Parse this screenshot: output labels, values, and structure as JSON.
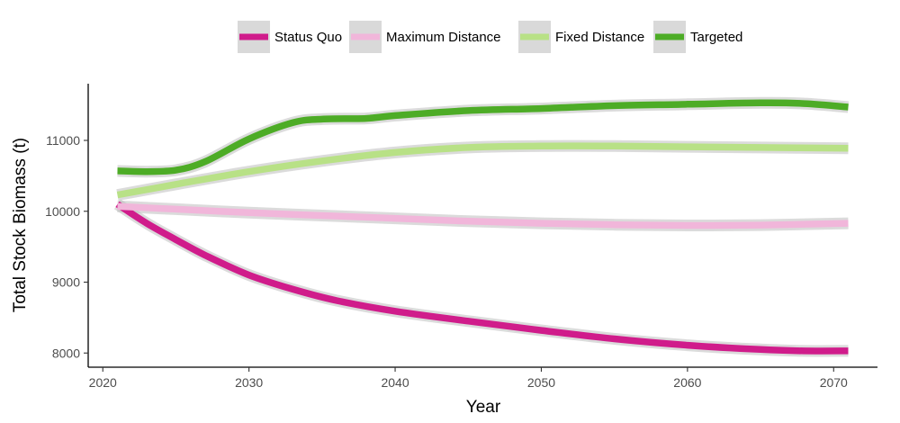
{
  "chart_data": {
    "type": "line",
    "xlabel": "Year",
    "ylabel": "Total Stock Biomass (t)",
    "xlim": [
      2019,
      2073
    ],
    "ylim": [
      7800,
      11800
    ],
    "x_ticks": [
      2020,
      2030,
      2040,
      2050,
      2060,
      2070
    ],
    "y_ticks": [
      8000,
      9000,
      10000,
      11000
    ],
    "grid": false,
    "legend_position": "top",
    "ribbon_color": "#bdbdbd",
    "series": [
      {
        "name": "Status Quo",
        "color": "#d01c8b",
        "x": [
          2021,
          2023,
          2025,
          2027,
          2030,
          2033,
          2036,
          2040,
          2045,
          2050,
          2055,
          2060,
          2065,
          2068,
          2071
        ],
        "y": [
          10100,
          9830,
          9600,
          9380,
          9100,
          8900,
          8740,
          8590,
          8450,
          8320,
          8200,
          8110,
          8050,
          8030,
          8030
        ]
      },
      {
        "name": "Maximum Distance",
        "color": "#f1b6da",
        "x": [
          2021,
          2025,
          2030,
          2035,
          2040,
          2045,
          2050,
          2055,
          2060,
          2065,
          2071
        ],
        "y": [
          10070,
          10030,
          9980,
          9940,
          9900,
          9860,
          9830,
          9810,
          9800,
          9805,
          9830
        ]
      },
      {
        "name": "Fixed Distance",
        "color": "#b8e186",
        "x": [
          2021,
          2025,
          2030,
          2035,
          2040,
          2045,
          2050,
          2055,
          2060,
          2065,
          2071
        ],
        "y": [
          10230,
          10380,
          10560,
          10710,
          10830,
          10900,
          10920,
          10920,
          10910,
          10900,
          10890
        ]
      },
      {
        "name": "Targeted",
        "color": "#4dac26",
        "x": [
          2021,
          2023,
          2025,
          2027,
          2030,
          2033,
          2035,
          2038,
          2040,
          2045,
          2050,
          2055,
          2060,
          2065,
          2068,
          2071
        ],
        "y": [
          10570,
          10560,
          10580,
          10700,
          11020,
          11250,
          11300,
          11310,
          11350,
          11420,
          11450,
          11490,
          11510,
          11530,
          11520,
          11470
        ]
      }
    ]
  }
}
